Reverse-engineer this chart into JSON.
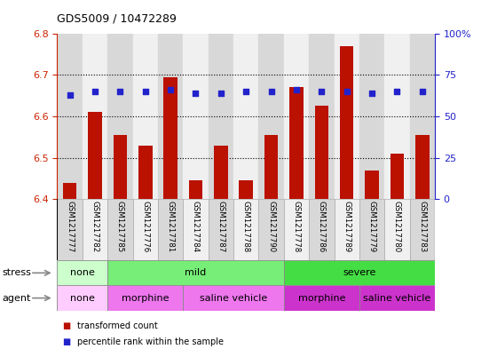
{
  "title": "GDS5009 / 10472289",
  "samples": [
    "GSM1217777",
    "GSM1217782",
    "GSM1217785",
    "GSM1217776",
    "GSM1217781",
    "GSM1217784",
    "GSM1217787",
    "GSM1217788",
    "GSM1217790",
    "GSM1217778",
    "GSM1217786",
    "GSM1217789",
    "GSM1217779",
    "GSM1217780",
    "GSM1217783"
  ],
  "bar_values": [
    6.44,
    6.61,
    6.555,
    6.53,
    6.695,
    6.445,
    6.53,
    6.445,
    6.555,
    6.67,
    6.625,
    6.77,
    6.47,
    6.51,
    6.555
  ],
  "dot_values_pct": [
    63,
    65,
    65,
    65,
    66,
    64,
    64,
    65,
    65,
    66,
    65,
    65,
    64,
    65,
    65
  ],
  "ymin": 6.4,
  "ymax": 6.8,
  "yticks": [
    6.4,
    6.5,
    6.6,
    6.7,
    6.8
  ],
  "y2ticks": [
    0,
    25,
    50,
    75,
    100
  ],
  "y2ticklabels": [
    "0",
    "25",
    "50",
    "75",
    "100%"
  ],
  "bar_color": "#bb1100",
  "dot_color": "#2222cc",
  "tick_color_left": "#cc2200",
  "tick_color_right": "#2222cc",
  "stress_groups": [
    {
      "label": "none",
      "start": 0,
      "end": 2,
      "color": "#ccffcc"
    },
    {
      "label": "mild",
      "start": 2,
      "end": 9,
      "color": "#77ee77"
    },
    {
      "label": "severe",
      "start": 9,
      "end": 15,
      "color": "#44dd44"
    }
  ],
  "agent_groups": [
    {
      "label": "none",
      "start": 0,
      "end": 2,
      "color": "#ffccff"
    },
    {
      "label": "morphine",
      "start": 2,
      "end": 5,
      "color": "#ee77ee"
    },
    {
      "label": "saline vehicle",
      "start": 5,
      "end": 9,
      "color": "#ee77ee"
    },
    {
      "label": "morphine",
      "start": 9,
      "end": 12,
      "color": "#cc33cc"
    },
    {
      "label": "saline vehicle",
      "start": 12,
      "end": 15,
      "color": "#cc33cc"
    }
  ],
  "col_bg_even": "#d8d8d8",
  "col_bg_odd": "#f0f0f0",
  "legend_bar_label": "transformed count",
  "legend_dot_label": "percentile rank within the sample"
}
